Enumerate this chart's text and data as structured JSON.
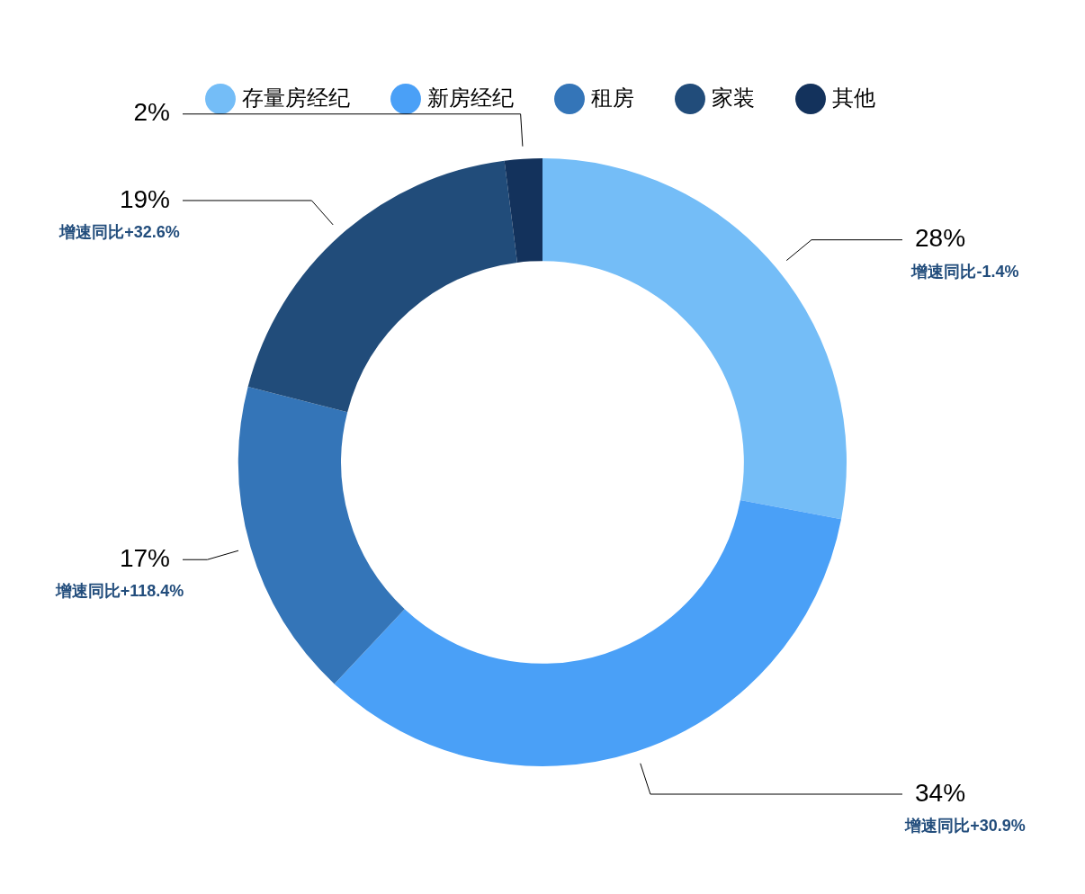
{
  "chart_data": {
    "type": "donut",
    "categories": [
      "存量房经纪",
      "新房经纪",
      "租房",
      "家装",
      "其他"
    ],
    "values": [
      28,
      34,
      17,
      19,
      2
    ],
    "colors": [
      "#74bdf7",
      "#4aa0f7",
      "#3475b8",
      "#214c7a",
      "#13325c"
    ],
    "value_labels": [
      "28%",
      "34%",
      "17%",
      "19%",
      "2%"
    ],
    "annotations": [
      {
        "text": "增速同比-1.4%",
        "x": "存量房经纪"
      },
      {
        "text": "增速同比+30.9%",
        "x": "新房经纪"
      },
      {
        "text": "增速同比+118.4%",
        "x": "租房"
      },
      {
        "text": "增速同比+32.6%",
        "x": "家装"
      }
    ],
    "legend": "top"
  }
}
